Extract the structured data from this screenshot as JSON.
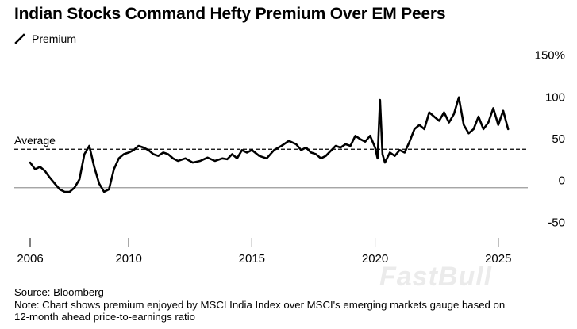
{
  "title": "Indian Stocks Command Hefty Premium Over EM Peers",
  "legend": {
    "label": "Premium"
  },
  "source": "Source: Bloomberg",
  "note_line1": "Note: Chart shows premium enjoyed by MSCI India Index over MSCI's emerging markets gauge based on",
  "note_line2": "12-month ahead price-to-earnings ratio",
  "watermark": "FastBull",
  "chart_data": {
    "type": "line",
    "title": "Indian Stocks Command Hefty Premium Over EM Peers",
    "xlabel": "",
    "ylabel": "",
    "xlim": [
      2006,
      2026.2
    ],
    "ylim": [
      -60,
      160
    ],
    "y_ticks": [
      -50,
      0,
      50,
      100,
      150
    ],
    "y_tick_labels": [
      "-50",
      "0",
      "50",
      "100",
      "150%"
    ],
    "x_ticks": [
      2006,
      2010,
      2015,
      2020,
      2025
    ],
    "x_tick_labels": [
      "2006",
      "2010",
      "2015",
      "2020",
      "2025"
    ],
    "grid": false,
    "legend_position": "top-left",
    "colors": {
      "line": "#000000",
      "zero_line": "#999999",
      "average_line": "#000000"
    },
    "annotations": [
      {
        "label": "Average",
        "value": 46,
        "style": "dashed"
      }
    ],
    "series": [
      {
        "name": "Premium",
        "x": [
          2006.0,
          2006.2,
          2006.4,
          2006.6,
          2006.8,
          2007.0,
          2007.2,
          2007.4,
          2007.6,
          2007.8,
          2008.0,
          2008.2,
          2008.4,
          2008.6,
          2008.8,
          2009.0,
          2009.2,
          2009.4,
          2009.6,
          2009.8,
          2010.0,
          2010.2,
          2010.4,
          2010.6,
          2010.8,
          2011.0,
          2011.2,
          2011.4,
          2011.6,
          2011.8,
          2012.0,
          2012.3,
          2012.6,
          2012.9,
          2013.2,
          2013.5,
          2013.8,
          2014.0,
          2014.2,
          2014.4,
          2014.6,
          2014.8,
          2015.0,
          2015.3,
          2015.6,
          2015.9,
          2016.2,
          2016.5,
          2016.8,
          2017.0,
          2017.2,
          2017.4,
          2017.6,
          2017.8,
          2018.0,
          2018.2,
          2018.4,
          2018.6,
          2018.8,
          2019.0,
          2019.2,
          2019.4,
          2019.6,
          2019.8,
          2020.0,
          2020.1,
          2020.2,
          2020.3,
          2020.4,
          2020.6,
          2020.8,
          2021.0,
          2021.2,
          2021.4,
          2021.6,
          2021.8,
          2022.0,
          2022.2,
          2022.4,
          2022.6,
          2022.8,
          2023.0,
          2023.2,
          2023.4,
          2023.6,
          2023.8,
          2024.0,
          2024.2,
          2024.4,
          2024.6,
          2024.8,
          2025.0,
          2025.2,
          2025.4
        ],
        "values": [
          30,
          22,
          25,
          20,
          12,
          5,
          -2,
          -5,
          -5,
          0,
          10,
          40,
          50,
          25,
          5,
          -5,
          -2,
          22,
          35,
          40,
          42,
          45,
          50,
          48,
          45,
          40,
          38,
          42,
          40,
          35,
          32,
          35,
          30,
          32,
          36,
          32,
          35,
          34,
          40,
          35,
          45,
          42,
          45,
          38,
          35,
          45,
          50,
          56,
          52,
          45,
          48,
          42,
          40,
          35,
          38,
          44,
          50,
          48,
          52,
          50,
          62,
          58,
          55,
          62,
          48,
          35,
          105,
          40,
          30,
          42,
          38,
          45,
          42,
          55,
          70,
          75,
          70,
          90,
          85,
          80,
          90,
          78,
          88,
          108,
          75,
          65,
          70,
          85,
          70,
          78,
          95,
          75,
          92,
          70
        ]
      }
    ]
  }
}
